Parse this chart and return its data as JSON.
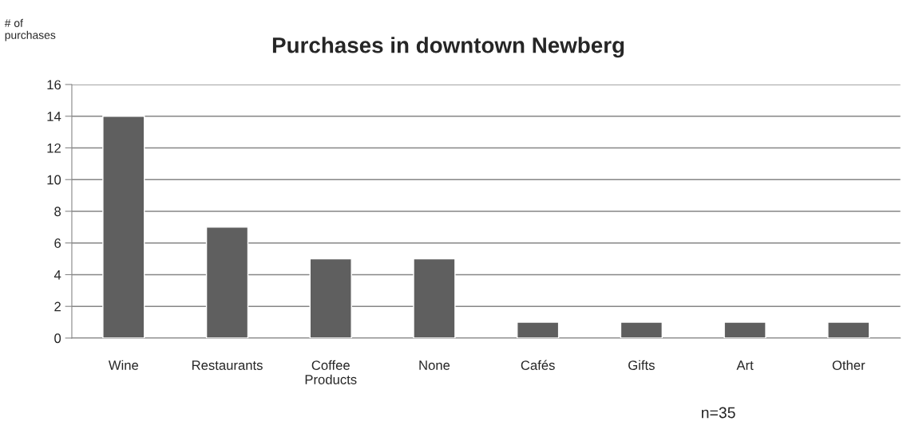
{
  "chart_data": {
    "type": "bar",
    "title": "Purchases in downtown Newberg",
    "ylabel": "# of purchases",
    "categories": [
      "Wine",
      "Restaurants",
      "Coffee Products",
      "None",
      "Cafés",
      "Gifts",
      "Art",
      "Other"
    ],
    "values": [
      14,
      7,
      5,
      5,
      1,
      1,
      1,
      1
    ],
    "color": "#5f5f5f",
    "ylim": [
      0,
      16
    ],
    "yticks": [
      0,
      2,
      4,
      6,
      8,
      10,
      12,
      14,
      16
    ],
    "grid": "y",
    "legend": false,
    "annotations": [
      "n=35"
    ]
  }
}
